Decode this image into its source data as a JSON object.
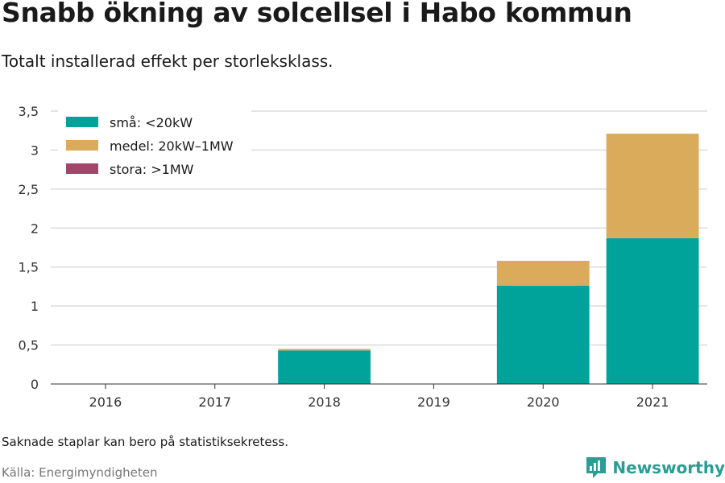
{
  "title": "Snabb ökning av solcellsel i Habo kommun",
  "subtitle": "Totalt installerad effekt per storleksklass.",
  "footnote": "Saknade staplar kan bero på statistiksekretess.",
  "source": "Källa: Energimyndigheten",
  "brand": "Newsworthy",
  "chart_data": {
    "type": "bar",
    "stacked": true,
    "categories": [
      "2016",
      "2017",
      "2018",
      "2019",
      "2020",
      "2021"
    ],
    "series": [
      {
        "name": "små: <20kW",
        "color": "#00a39a",
        "values": [
          0,
          0,
          0.43,
          0,
          1.26,
          1.87
        ]
      },
      {
        "name": "medel: 20kW–1MW",
        "color": "#d9ab5a",
        "values": [
          0,
          0,
          0.02,
          0,
          0.32,
          1.34
        ]
      },
      {
        "name": "stora: >1MW",
        "color": "#a34468",
        "values": [
          0,
          0,
          0,
          0,
          0,
          0
        ]
      }
    ],
    "ylim": [
      0,
      3.5
    ],
    "yticks": [
      0,
      0.5,
      1,
      1.5,
      2,
      2.5,
      3,
      3.5
    ],
    "ytick_labels": [
      "0",
      "0,5",
      "1",
      "1,5",
      "2",
      "2,5",
      "3",
      "3,5"
    ],
    "grid": true,
    "legend": "top-left",
    "xlabel": "",
    "ylabel": ""
  }
}
